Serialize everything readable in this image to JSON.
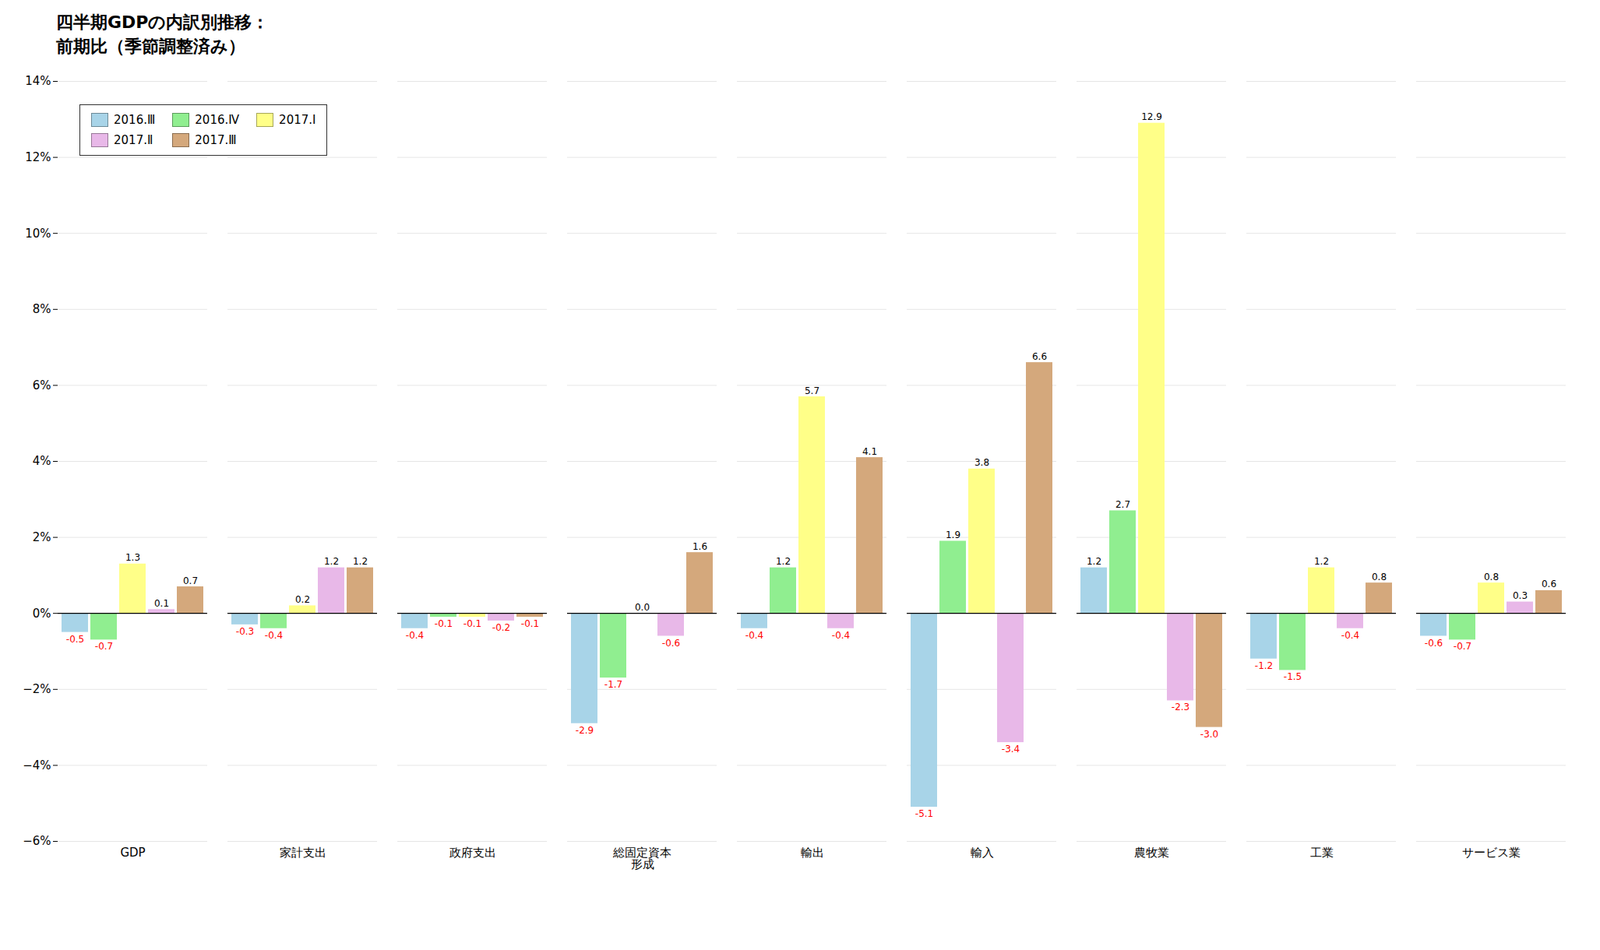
{
  "chart_data": {
    "type": "bar",
    "title": "四半期GDPの内訳別推移：\n前期比（季節調整済み）",
    "categories": [
      "GDP",
      "家計支出",
      "政府支出",
      "総固定資本\n形成",
      "輸出",
      "輸入",
      "農牧業",
      "工業",
      "サービス業"
    ],
    "series": [
      {
        "name": "2016.Ⅲ",
        "color": "#A8D4E8",
        "values": [
          -0.5,
          -0.3,
          -0.4,
          -2.9,
          -0.4,
          -5.1,
          1.2,
          -1.2,
          -0.6
        ],
        "value_labels": [
          "-0.5",
          "-0.3",
          "-0.4",
          "-2.9",
          "-0.4",
          "-5.1",
          "1.2",
          "-1.2",
          "-0.6"
        ]
      },
      {
        "name": "2016.Ⅳ",
        "color": "#90EE90",
        "values": [
          -0.7,
          -0.4,
          -0.1,
          -1.7,
          1.2,
          1.9,
          2.7,
          -1.5,
          -0.7
        ],
        "value_labels": [
          "-0.7",
          "-0.4",
          "-0.1",
          "-1.7",
          "1.2",
          "1.9",
          "2.7",
          "-1.5",
          "-0.7"
        ]
      },
      {
        "name": "2017.Ⅰ",
        "color": "#FFFF88",
        "values": [
          1.3,
          0.2,
          -0.1,
          0.0,
          5.7,
          3.8,
          12.9,
          1.2,
          0.8
        ],
        "value_labels": [
          "1.3",
          "0.2",
          "-0.1",
          "0.0",
          "5.7",
          "3.8",
          "12.9",
          "1.2",
          "0.8"
        ]
      },
      {
        "name": "2017.Ⅱ",
        "color": "#E8B8E8",
        "values": [
          0.1,
          1.2,
          -0.2,
          -0.6,
          -0.4,
          -3.4,
          -2.3,
          -0.4,
          0.3
        ],
        "value_labels": [
          "0.1",
          "1.2",
          "-0.2",
          "-0.6",
          "-0.4",
          "-3.4",
          "-2.3",
          "-0.4",
          "0.3"
        ]
      },
      {
        "name": "2017.Ⅲ",
        "color": "#D4A87C",
        "values": [
          0.7,
          1.2,
          -0.1,
          1.6,
          4.1,
          6.6,
          -3.0,
          0.8,
          0.6
        ],
        "value_labels": [
          "0.7",
          "1.2",
          "-0.1",
          "1.6",
          "4.1",
          "6.6",
          "-3.0",
          "0.8",
          "0.6"
        ]
      }
    ],
    "ylim": [
      -6,
      14
    ],
    "yticks": [
      {
        "value": -6,
        "label": "−6%"
      },
      {
        "value": -4,
        "label": "−4%"
      },
      {
        "value": -2,
        "label": "−2%"
      },
      {
        "value": 0,
        "label": "0%"
      },
      {
        "value": 2,
        "label": "2%"
      },
      {
        "value": 4,
        "label": "4%"
      },
      {
        "value": 6,
        "label": "6%"
      },
      {
        "value": 8,
        "label": "8%"
      },
      {
        "value": 10,
        "label": "10%"
      },
      {
        "value": 12,
        "label": "12%"
      },
      {
        "value": 14,
        "label": "14%"
      }
    ],
    "grid": true,
    "legend": "upper left",
    "data_labels": true
  }
}
